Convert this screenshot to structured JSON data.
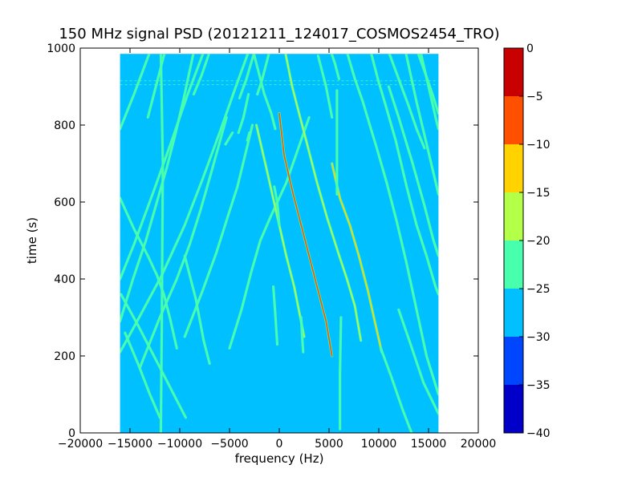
{
  "chart_data": {
    "type": "heatmap",
    "title": "150 MHz signal PSD (20121211_124017_COSMOS2454_TRO)",
    "xlabel": "frequency (Hz)",
    "ylabel": "time (s)",
    "xlim": [
      -20000,
      20000
    ],
    "ylim": [
      0,
      1000
    ],
    "x_ticks": [
      -20000,
      -15000,
      -10000,
      -5000,
      0,
      5000,
      10000,
      15000,
      20000
    ],
    "y_ticks": [
      0,
      200,
      400,
      600,
      800,
      1000
    ],
    "data_extent": {
      "x": [
        -16000,
        16000
      ],
      "y": [
        0,
        985
      ]
    },
    "background_level": -27.5,
    "grid": false,
    "colorbar": {
      "min": -40,
      "max": 0,
      "ticks": [
        0,
        -5,
        -10,
        -15,
        -20,
        -25,
        -30,
        -35,
        -40
      ],
      "bands": [
        {
          "from": -40,
          "to": -35,
          "color": "#0000c8"
        },
        {
          "from": -35,
          "to": -30,
          "color": "#0046ff"
        },
        {
          "from": -30,
          "to": -25,
          "color": "#00c0ff"
        },
        {
          "from": -25,
          "to": -20,
          "color": "#48ffae"
        },
        {
          "from": -20,
          "to": -15,
          "color": "#b4ff48"
        },
        {
          "from": -15,
          "to": -10,
          "color": "#ffd200"
        },
        {
          "from": -10,
          "to": -5,
          "color": "#ff5000"
        },
        {
          "from": -5,
          "to": 0,
          "color": "#c80000"
        }
      ]
    },
    "traces": [
      {
        "points": [
          [
            3000,
            820
          ],
          [
            700,
            650
          ],
          [
            -900,
            560
          ],
          [
            -1900,
            500
          ],
          [
            -2800,
            420
          ],
          [
            -3800,
            320
          ],
          [
            -5000,
            220
          ]
        ],
        "level": -22.5
      },
      {
        "points": [
          [
            -2700,
            800
          ],
          [
            -4200,
            640
          ],
          [
            -5200,
            560
          ],
          [
            -6300,
            470
          ],
          [
            -7700,
            370
          ],
          [
            -9500,
            250
          ]
        ],
        "level": -22.5
      },
      {
        "points": [
          [
            -5300,
            820
          ],
          [
            -6800,
            680
          ],
          [
            -7900,
            580
          ],
          [
            -9000,
            490
          ],
          [
            -10300,
            400
          ],
          [
            -12000,
            300
          ],
          [
            -14000,
            170
          ]
        ],
        "level": -22.5
      },
      {
        "points": [
          [
            -3100,
            990
          ],
          [
            -4500,
            890
          ],
          [
            -6000,
            780
          ],
          [
            -7700,
            660
          ],
          [
            -9500,
            540
          ],
          [
            -11800,
            410
          ],
          [
            -14500,
            280
          ],
          [
            -16000,
            210
          ]
        ],
        "level": -22.5
      },
      {
        "points": [
          [
            -7600,
            990
          ],
          [
            -9200,
            880
          ],
          [
            -10800,
            760
          ],
          [
            -12600,
            630
          ],
          [
            -14600,
            490
          ],
          [
            -16000,
            400
          ]
        ],
        "level": -22.5
      },
      {
        "points": [
          [
            -13000,
            990
          ],
          [
            -14600,
            880
          ],
          [
            -16000,
            790
          ]
        ],
        "level": -22.5
      },
      {
        "points": [
          [
            -8600,
            990
          ],
          [
            -9600,
            870
          ],
          [
            -10500,
            770
          ],
          [
            -11300,
            690
          ],
          [
            -12300,
            600
          ],
          [
            -13400,
            500
          ],
          [
            -14700,
            400
          ],
          [
            -16000,
            290
          ]
        ],
        "level": -22.5
      },
      {
        "points": [
          [
            -15900,
            360
          ],
          [
            -14200,
            280
          ],
          [
            -12600,
            200
          ],
          [
            -11000,
            120
          ],
          [
            -9400,
            40
          ]
        ],
        "level": -22.5
      },
      {
        "points": [
          [
            -16000,
            610
          ],
          [
            -14600,
            530
          ],
          [
            -13200,
            460
          ],
          [
            -12300,
            410
          ],
          [
            -11600,
            360
          ],
          [
            -11000,
            300
          ],
          [
            -10300,
            220
          ]
        ],
        "level": -20
      },
      {
        "points": [
          [
            -11500,
            990
          ],
          [
            -12400,
            900
          ],
          [
            -13200,
            820
          ]
        ],
        "level": -22.5
      },
      {
        "points": [
          [
            -2500,
            990
          ],
          [
            -3300,
            920
          ],
          [
            -4000,
            870
          ]
        ],
        "level": -22.5
      },
      {
        "points": [
          [
            -1000,
            990
          ],
          [
            -1700,
            920
          ],
          [
            -2200,
            880
          ]
        ],
        "level": -22.5
      },
      {
        "points": [
          [
            -3100,
            880
          ],
          [
            -3600,
            820
          ],
          [
            -4100,
            780
          ]
        ],
        "level": -22.5
      },
      {
        "points": [
          [
            -7000,
            990
          ],
          [
            -7800,
            930
          ],
          [
            -8600,
            880
          ]
        ],
        "level": -22.5
      },
      {
        "points": [
          [
            -3000,
            780
          ],
          [
            -3200,
            760
          ]
        ],
        "level": -22.5
      },
      {
        "points": [
          [
            -4700,
            780
          ],
          [
            -5400,
            750
          ]
        ],
        "level": -22.5
      },
      {
        "points": [
          [
            -2600,
            990
          ],
          [
            -2000,
            930
          ],
          [
            -1500,
            880
          ],
          [
            -800,
            830
          ],
          [
            -400,
            790
          ]
        ],
        "level": -20
      },
      {
        "points": [
          [
            -2300,
            800
          ],
          [
            -1400,
            700
          ],
          [
            -700,
            620
          ],
          [
            0,
            540
          ],
          [
            700,
            460
          ],
          [
            1500,
            380
          ],
          [
            2500,
            250
          ]
        ],
        "level": -17.5
      },
      {
        "points": [
          [
            -500,
            640
          ],
          [
            -200,
            600
          ],
          [
            0,
            540
          ]
        ],
        "level": -22.5
      },
      {
        "points": [
          [
            0,
            830
          ],
          [
            500,
            720
          ],
          [
            1400,
            620
          ],
          [
            2400,
            520
          ],
          [
            3300,
            430
          ],
          [
            4000,
            360
          ],
          [
            4700,
            290
          ],
          [
            5300,
            200
          ]
        ],
        "level": -7.5
      },
      {
        "points": [
          [
            600,
            990
          ],
          [
            1300,
            900
          ],
          [
            2100,
            820
          ],
          [
            2900,
            740
          ],
          [
            3800,
            650
          ],
          [
            4800,
            560
          ],
          [
            5900,
            470
          ],
          [
            6800,
            400
          ],
          [
            7600,
            330
          ],
          [
            8200,
            240
          ]
        ],
        "level": -17.5
      },
      {
        "points": [
          [
            3900,
            980
          ],
          [
            4700,
            900
          ],
          [
            5300,
            820
          ]
        ],
        "level": -22.5
      },
      {
        "points": [
          [
            5200,
            990
          ],
          [
            5600,
            960
          ],
          [
            6000,
            920
          ]
        ],
        "level": -22.5
      },
      {
        "points": [
          [
            5300,
            700
          ],
          [
            6100,
            610
          ],
          [
            7100,
            540
          ],
          [
            8000,
            460
          ],
          [
            8900,
            370
          ],
          [
            9600,
            290
          ],
          [
            10300,
            210
          ]
        ],
        "level": -12.5
      },
      {
        "points": [
          [
            6800,
            990
          ],
          [
            7600,
            920
          ],
          [
            8400,
            860
          ],
          [
            9100,
            800
          ],
          [
            9800,
            740
          ],
          [
            10800,
            650
          ],
          [
            11800,
            550
          ],
          [
            12800,
            440
          ],
          [
            13800,
            320
          ],
          [
            14800,
            200
          ],
          [
            16000,
            100
          ]
        ],
        "level": -20
      },
      {
        "points": [
          [
            9200,
            990
          ],
          [
            9900,
            920
          ],
          [
            10700,
            850
          ],
          [
            11700,
            760
          ],
          [
            12800,
            640
          ],
          [
            13800,
            540
          ],
          [
            14800,
            460
          ],
          [
            15700,
            380
          ],
          [
            16000,
            360
          ]
        ],
        "level": -20
      },
      {
        "points": [
          [
            11000,
            990
          ],
          [
            12000,
            920
          ],
          [
            13000,
            850
          ],
          [
            13800,
            790
          ],
          [
            14600,
            740
          ]
        ],
        "level": -22.5
      },
      {
        "points": [
          [
            13900,
            990
          ],
          [
            14600,
            940
          ],
          [
            15400,
            880
          ],
          [
            16000,
            830
          ]
        ],
        "level": -22.5
      },
      {
        "points": [
          [
            11000,
            900
          ],
          [
            12000,
            820
          ],
          [
            13400,
            700
          ],
          [
            14600,
            590
          ],
          [
            15500,
            500
          ],
          [
            16000,
            460
          ]
        ],
        "level": -20
      },
      {
        "points": [
          [
            14200,
            990
          ],
          [
            15000,
            900
          ],
          [
            15800,
            810
          ],
          [
            16000,
            790
          ]
        ],
        "level": -20
      },
      {
        "points": [
          [
            12700,
            990
          ],
          [
            13800,
            860
          ],
          [
            14900,
            740
          ],
          [
            16000,
            620
          ]
        ],
        "level": -22.5
      },
      {
        "points": [
          [
            12000,
            320
          ],
          [
            13200,
            230
          ],
          [
            14500,
            130
          ],
          [
            16000,
            50
          ]
        ],
        "level": -22.5
      },
      {
        "points": [
          [
            10200,
            220
          ],
          [
            11200,
            150
          ],
          [
            12400,
            60
          ],
          [
            13300,
            0
          ]
        ],
        "level": -22.5
      },
      {
        "points": [
          [
            -11900,
            990
          ],
          [
            -11700,
            700
          ],
          [
            -11800,
            300
          ],
          [
            -11900,
            0
          ]
        ],
        "level": -22.5
      },
      {
        "points": [
          [
            5800,
            890
          ],
          [
            5800,
            700
          ],
          [
            5800,
            620
          ]
        ],
        "level": -22.5
      },
      {
        "points": [
          [
            6200,
            300
          ],
          [
            6100,
            150
          ],
          [
            6100,
            10
          ]
        ],
        "level": -20
      },
      {
        "points": [
          [
            -9500,
            460
          ],
          [
            -8400,
            350
          ],
          [
            -7600,
            240
          ],
          [
            -7000,
            180
          ]
        ],
        "level": -22.5
      },
      {
        "points": [
          [
            -15500,
            260
          ],
          [
            -14200,
            180
          ],
          [
            -13000,
            100
          ],
          [
            -12000,
            40
          ]
        ],
        "level": -22.5
      },
      {
        "points": [
          [
            -600,
            380
          ],
          [
            -400,
            310
          ],
          [
            -200,
            230
          ]
        ],
        "level": -22.5
      },
      {
        "points": [
          [
            2200,
            300
          ],
          [
            2300,
            250
          ],
          [
            2400,
            210
          ]
        ],
        "level": -22.5
      }
    ],
    "horizontal_bands": [
      {
        "x": [
          -16000,
          16000
        ],
        "y": 915,
        "level": -22.5
      },
      {
        "x": [
          -16000,
          16000
        ],
        "y": 905,
        "level": -22.5
      }
    ]
  }
}
